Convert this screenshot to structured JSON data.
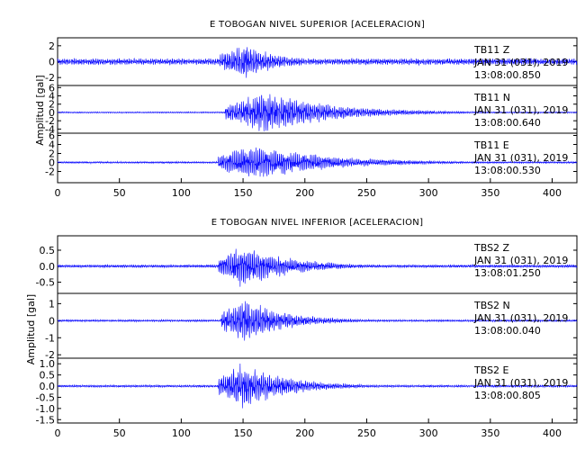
{
  "chart_data": [
    {
      "type": "line",
      "title": "E TOBOGAN NIVEL SUPERIOR [ACELERACION]",
      "ylabel": "Amplitud [gal]",
      "xlim": [
        0,
        420
      ],
      "x_ticks": [
        0,
        50,
        100,
        150,
        200,
        250,
        300,
        350,
        400
      ],
      "traces": [
        {
          "station": "TB11",
          "component": "Z",
          "date": "JAN 31 (031), 2019",
          "time": "13:08:00.850",
          "y_ticks": [
            2,
            0,
            -2
          ],
          "ylim": [
            -3,
            3
          ],
          "noise_amp": 0.45,
          "onset": 130,
          "peak_time": 150,
          "peak_amp": 2.5,
          "decay": 30,
          "seed": 11
        },
        {
          "station": "TB11",
          "component": "N",
          "date": "JAN 31 (031), 2019",
          "time": "13:08:00.640",
          "y_ticks": [
            6,
            4,
            2,
            0,
            -2,
            -4
          ],
          "ylim": [
            -5,
            6.5
          ],
          "noise_amp": 0.2,
          "onset": 135,
          "peak_time": 168,
          "peak_amp": 5.5,
          "decay": 55,
          "seed": 23
        },
        {
          "station": "TB11",
          "component": "E",
          "date": "JAN 31 (031), 2019",
          "time": "13:08:00.530",
          "y_ticks": [
            6,
            4,
            2,
            0,
            -2
          ],
          "ylim": [
            -4.5,
            6.5
          ],
          "noise_amp": 0.25,
          "onset": 130,
          "peak_time": 158,
          "peak_amp": 4.5,
          "decay": 60,
          "seed": 37
        }
      ]
    },
    {
      "type": "line",
      "title": "E TOBOGAN NIVEL INFERIOR [ACELERACION]",
      "ylabel": "Amplitud [gal]",
      "xlim": [
        0,
        420
      ],
      "x_ticks": [
        0,
        50,
        100,
        150,
        200,
        250,
        300,
        350,
        400
      ],
      "traces": [
        {
          "station": "TBS2",
          "component": "Z",
          "date": "JAN 31 (031), 2019",
          "time": "13:08:01.250",
          "y_ticks": [
            0.5,
            0.0,
            -0.5
          ],
          "ylim": [
            -0.85,
            0.95
          ],
          "noise_amp": 0.05,
          "onset": 130,
          "peak_time": 148,
          "peak_amp": 0.75,
          "decay": 40,
          "seed": 51
        },
        {
          "station": "TBS2",
          "component": "N",
          "date": "JAN 31 (031), 2019",
          "time": "13:08:00.040",
          "y_ticks": [
            1,
            0,
            -1,
            -2
          ],
          "ylim": [
            -2.2,
            1.6
          ],
          "noise_amp": 0.07,
          "onset": 132,
          "peak_time": 150,
          "peak_amp": 1.4,
          "decay": 35,
          "seed": 67
        },
        {
          "station": "TBS2",
          "component": "E",
          "date": "JAN 31 (031), 2019",
          "time": "13:08:00.805",
          "y_ticks": [
            1.0,
            0.5,
            0.0,
            -0.5,
            -1.0,
            -1.5
          ],
          "ylim": [
            -1.65,
            1.25
          ],
          "noise_amp": 0.06,
          "onset": 130,
          "peak_time": 150,
          "peak_amp": 1.1,
          "decay": 38,
          "seed": 79
        }
      ]
    }
  ],
  "colors": {
    "trace": "#0000ff",
    "frame": "#000000"
  }
}
